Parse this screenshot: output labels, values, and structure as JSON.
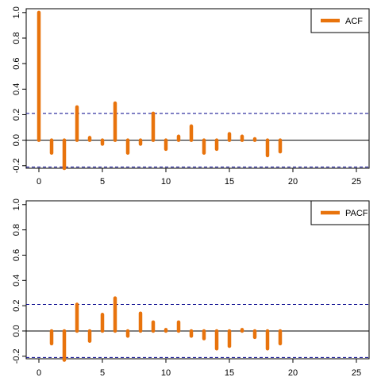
{
  "chart_data": [
    {
      "type": "bar",
      "legend": {
        "label": "ACF",
        "placement": "top-right"
      },
      "color": "#E8730C",
      "conf_color": "#00008B",
      "xlim": [
        -1,
        26
      ],
      "ylim": [
        -0.22,
        1.03
      ],
      "x_ticks": [
        0,
        5,
        10,
        15,
        20,
        25
      ],
      "y_ticks": [
        -0.2,
        0.0,
        0.2,
        0.4,
        0.6,
        0.8,
        1.0
      ],
      "y_tick_labels": [
        "-0.2",
        "0.0",
        "0.2",
        "0.4",
        "0.6",
        "0.8",
        "1.0"
      ],
      "conf_bound": 0.21,
      "x": [
        0,
        1,
        2,
        3,
        4,
        5,
        6,
        7,
        8,
        9,
        10,
        11,
        12,
        13,
        14,
        15,
        16,
        17,
        18,
        19
      ],
      "values": [
        1.0,
        -0.1,
        -0.22,
        0.26,
        0.02,
        -0.03,
        0.29,
        -0.1,
        -0.03,
        0.21,
        -0.07,
        0.03,
        0.11,
        -0.1,
        -0.07,
        0.05,
        0.03,
        0.01,
        -0.12,
        -0.09
      ]
    },
    {
      "type": "bar",
      "legend": {
        "label": "PACF",
        "placement": "top-right"
      },
      "color": "#E8730C",
      "conf_color": "#00008B",
      "xlim": [
        -1,
        26
      ],
      "ylim": [
        -0.22,
        1.03
      ],
      "x_ticks": [
        0,
        5,
        10,
        15,
        20,
        25
      ],
      "y_ticks": [
        -0.2,
        0.0,
        0.2,
        0.4,
        0.6,
        0.8,
        1.0
      ],
      "y_tick_labels": [
        "-0.2",
        "0.0",
        "0.2",
        "0.4",
        "0.6",
        "0.8",
        "1.0"
      ],
      "conf_bound": 0.21,
      "x": [
        1,
        2,
        3,
        4,
        5,
        6,
        7,
        8,
        9,
        10,
        11,
        12,
        13,
        14,
        15,
        16,
        17,
        18,
        19
      ],
      "values": [
        -0.1,
        -0.23,
        0.21,
        -0.08,
        0.13,
        0.26,
        -0.04,
        0.14,
        0.07,
        0.01,
        0.07,
        -0.04,
        -0.06,
        -0.14,
        -0.12,
        0.01,
        -0.05,
        -0.14,
        -0.1
      ]
    }
  ]
}
